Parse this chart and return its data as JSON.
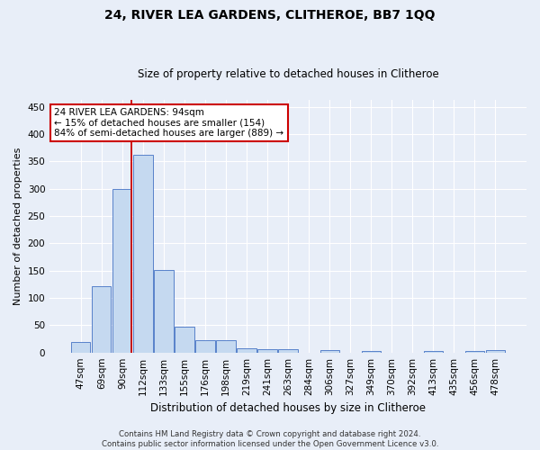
{
  "title": "24, RIVER LEA GARDENS, CLITHEROE, BB7 1QQ",
  "subtitle": "Size of property relative to detached houses in Clitheroe",
  "xlabel": "Distribution of detached houses by size in Clitheroe",
  "ylabel": "Number of detached properties",
  "footer_line1": "Contains HM Land Registry data © Crown copyright and database right 2024.",
  "footer_line2": "Contains public sector information licensed under the Open Government Licence v3.0.",
  "categories": [
    "47sqm",
    "69sqm",
    "90sqm",
    "112sqm",
    "133sqm",
    "155sqm",
    "176sqm",
    "198sqm",
    "219sqm",
    "241sqm",
    "263sqm",
    "284sqm",
    "306sqm",
    "327sqm",
    "349sqm",
    "370sqm",
    "392sqm",
    "413sqm",
    "435sqm",
    "456sqm",
    "478sqm"
  ],
  "values": [
    20,
    122,
    300,
    363,
    151,
    47,
    22,
    22,
    8,
    6,
    6,
    0,
    5,
    0,
    3,
    0,
    0,
    3,
    0,
    3,
    4
  ],
  "bar_color": "#c5d9f0",
  "bar_edge_color": "#4472c4",
  "vline_index": 2,
  "vline_color": "#cc0000",
  "annotation_text": "24 RIVER LEA GARDENS: 94sqm\n← 15% of detached houses are smaller (154)\n84% of semi-detached houses are larger (889) →",
  "annotation_box_color": "#ffffff",
  "annotation_box_edge_color": "#cc0000",
  "ylim": [
    0,
    462
  ],
  "yticks": [
    0,
    50,
    100,
    150,
    200,
    250,
    300,
    350,
    400,
    450
  ],
  "background_color": "#e8eef8",
  "plot_bg_color": "#e8eef8",
  "title_fontsize": 10,
  "subtitle_fontsize": 8.5,
  "ylabel_fontsize": 8,
  "xlabel_fontsize": 8.5,
  "tick_fontsize": 7.5,
  "footer_fontsize": 6.2
}
